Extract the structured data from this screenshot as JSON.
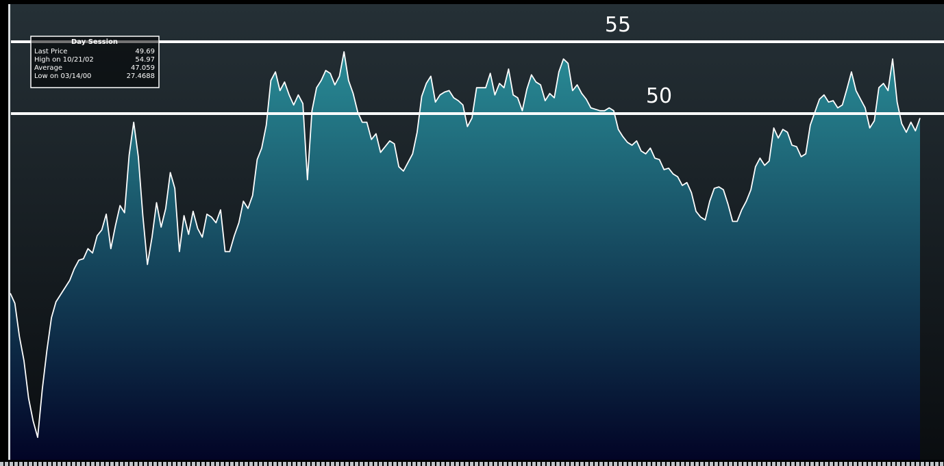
{
  "colors": {
    "background_top": "#253036",
    "background_bottom": "#0a0d10",
    "fill_top": "#2a8f99",
    "fill_bottom": "#020426",
    "line": "#ffffff",
    "reference_line": "#ffffff",
    "legend_text": "#ffffff"
  },
  "legend": {
    "title": "Day Session",
    "rows": [
      {
        "label": "Last Price",
        "value": "49.69"
      },
      {
        "label": "High on 10/21/02",
        "value": "54.97"
      },
      {
        "label": "Average",
        "value": "47.059"
      },
      {
        "label": "Low on 03/14/00",
        "value": "27.4688"
      }
    ]
  },
  "chart_data": {
    "type": "area",
    "title": "",
    "xlabel": "",
    "ylabel": "",
    "ylim": [
      27,
      56
    ],
    "grid": false,
    "legend_position": "top-left",
    "reference_lines": [
      {
        "value": 55,
        "label": "55"
      },
      {
        "value": 50,
        "label": "50"
      }
    ],
    "series": [
      {
        "values": [
          37.5,
          36.8,
          34.5,
          32.8,
          30.2,
          28.6,
          27.47,
          30.8,
          33.5,
          35.8,
          36.9,
          37.4,
          37.9,
          38.4,
          39.2,
          39.8,
          39.9,
          40.6,
          40.3,
          41.5,
          41.9,
          43.0,
          40.6,
          42.2,
          43.6,
          43.1,
          47.1,
          49.4,
          47.0,
          42.9,
          39.5,
          41.4,
          43.8,
          42.1,
          43.4,
          45.9,
          44.8,
          40.4,
          42.9,
          41.6,
          43.2,
          42.0,
          41.4,
          43.0,
          42.8,
          42.4,
          43.3,
          40.4,
          40.4,
          41.5,
          42.4,
          43.9,
          43.4,
          44.3,
          46.8,
          47.6,
          49.2,
          52.3,
          52.9,
          51.6,
          52.2,
          51.3,
          50.6,
          51.3,
          50.7,
          45.4,
          50.2,
          51.8,
          52.3,
          53.0,
          52.8,
          52.0,
          52.6,
          54.3,
          52.3,
          51.4,
          50.1,
          49.4,
          49.4,
          48.2,
          48.6,
          47.3,
          47.7,
          48.1,
          47.9,
          46.3,
          46.0,
          46.6,
          47.2,
          48.7,
          51.2,
          52.1,
          52.6,
          50.8,
          51.3,
          51.5,
          51.6,
          51.1,
          50.9,
          50.6,
          49.1,
          49.7,
          51.8,
          51.8,
          51.8,
          52.8,
          51.3,
          52.1,
          51.8,
          53.1,
          51.3,
          51.1,
          50.2,
          51.7,
          52.7,
          52.2,
          52.0,
          50.9,
          51.4,
          51.1,
          52.9,
          53.8,
          53.5,
          51.6,
          52.0,
          51.4,
          51.0,
          50.4,
          50.3,
          50.2,
          50.2,
          50.4,
          50.2,
          48.9,
          48.4,
          48.0,
          47.8,
          48.1,
          47.4,
          47.2,
          47.6,
          46.9,
          46.8,
          46.1,
          46.2,
          45.8,
          45.6,
          45.0,
          45.2,
          44.5,
          43.2,
          42.8,
          42.6,
          43.9,
          44.8,
          44.9,
          44.7,
          43.7,
          42.5,
          42.5,
          43.3,
          43.9,
          44.7,
          46.3,
          46.9,
          46.4,
          46.7,
          49.0,
          48.3,
          48.9,
          48.7,
          47.8,
          47.7,
          47.0,
          47.2,
          49.2,
          50.1,
          51.0,
          51.3,
          50.8,
          50.9,
          50.4,
          50.6,
          51.7,
          52.9,
          51.6,
          51.0,
          50.4,
          49.0,
          49.5,
          51.8,
          52.1,
          51.6,
          53.8,
          50.8,
          49.3,
          48.7,
          49.4,
          48.8,
          49.69
        ]
      }
    ]
  }
}
